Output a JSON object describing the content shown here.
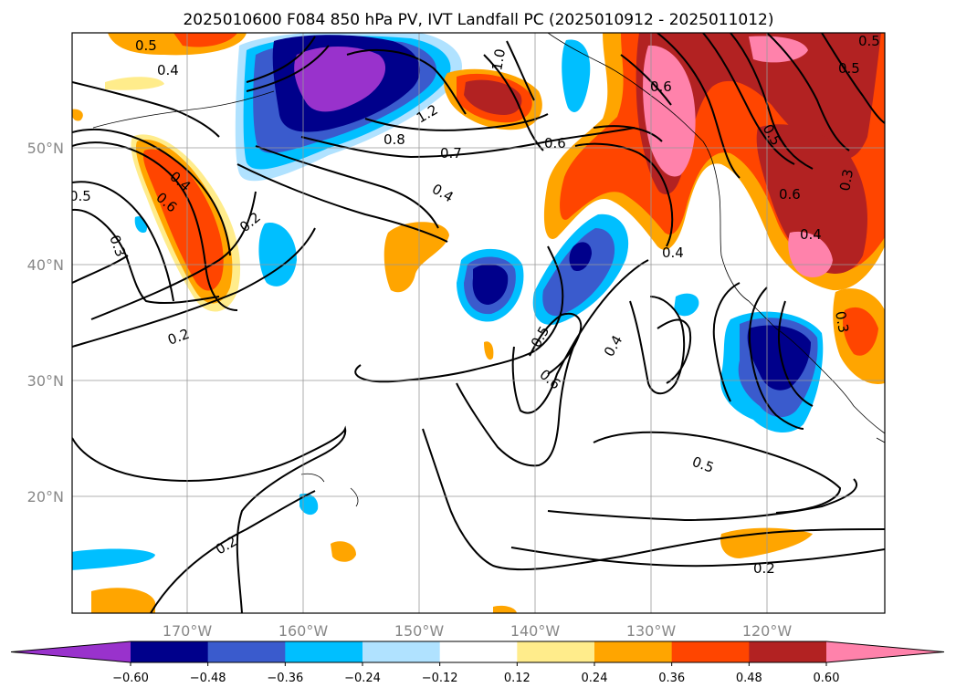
{
  "title": "2025010600 F084 850 hPa PV, IVT Landfall PC (2025010912 - 2025011012)",
  "lat_labels": [
    "50°N",
    "40°N",
    "30°N",
    "20°N"
  ],
  "lon_labels": [
    "170°W",
    "160°W",
    "150°W",
    "140°W",
    "130°W",
    "120°W"
  ],
  "colorbar": {
    "ticks": [
      "−0.60",
      "−0.48",
      "−0.36",
      "−0.24",
      "−0.12",
      "0.12",
      "0.24",
      "0.36",
      "0.48",
      "0.60"
    ],
    "colors": [
      "#9932cc",
      "#00008b",
      "#3a5bcd",
      "#00bfff",
      "#b0e2ff",
      "#ffffff",
      "#ffec8b",
      "#ffa500",
      "#ff4500",
      "#b22222",
      "#ff82ab"
    ]
  },
  "contour_labels": [
    "0.5",
    "0.4",
    "0.5",
    "1.0",
    "0.6",
    "0.5",
    "0.5",
    "1.2",
    "0.8",
    "0.7",
    "0.6",
    "0.4",
    "0.6",
    "0.4",
    "0.6",
    "0.3",
    "0.4",
    "0.5",
    "0.2",
    "0.3",
    "0.2",
    "0.4",
    "0.5",
    "0.6",
    "0.4",
    "0.3",
    "0.5",
    "0.2",
    "0.2"
  ]
}
